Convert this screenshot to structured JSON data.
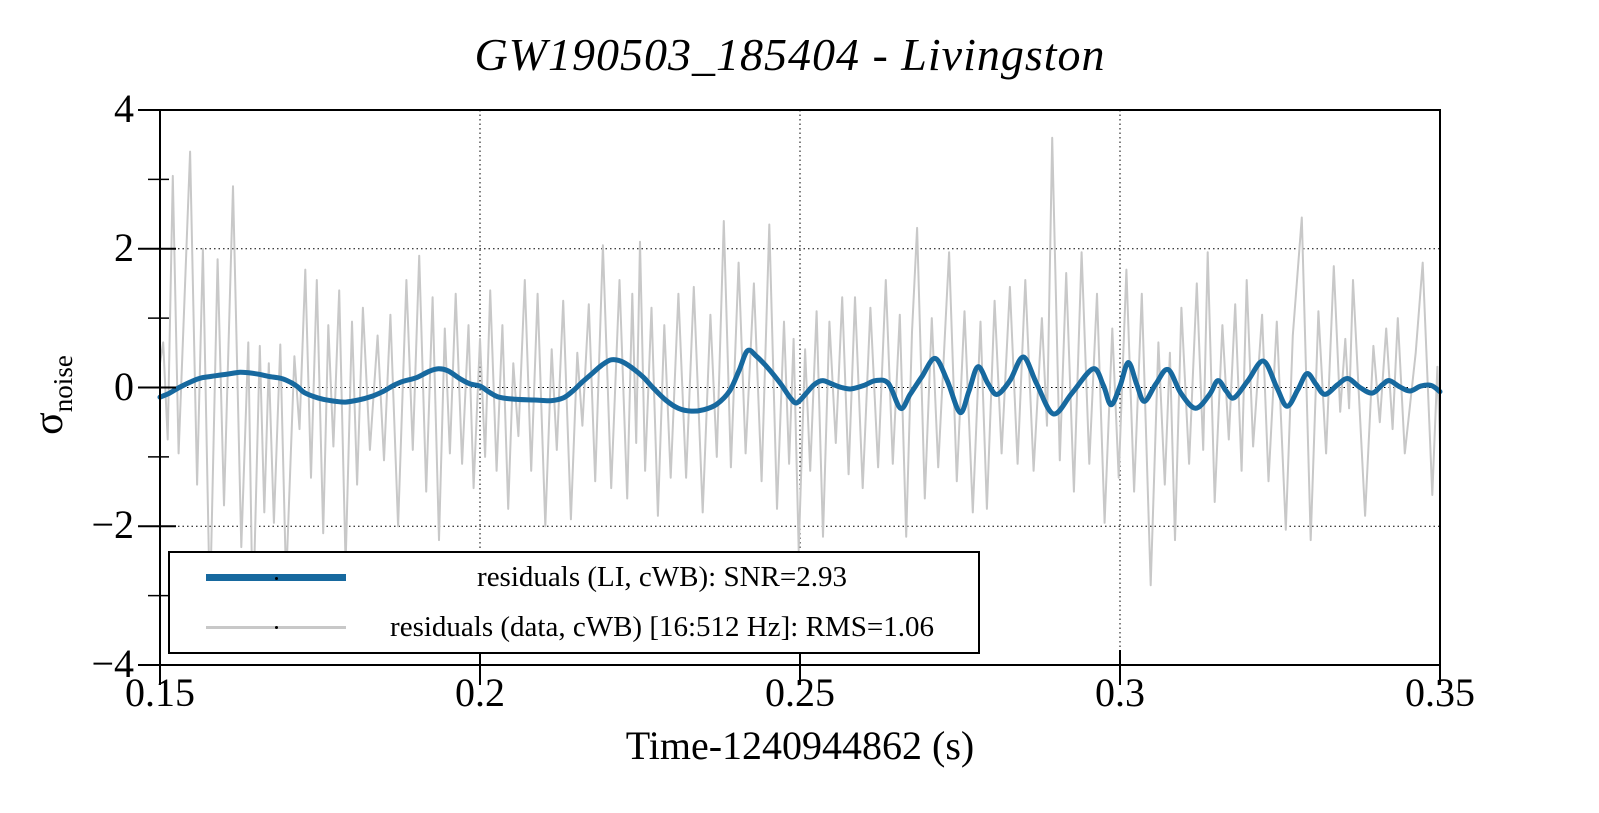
{
  "title": "GW190503_185404 - Livingston",
  "axis_titles": {
    "x": "Time-1240944862 (s)",
    "y_base": "σ",
    "y_sub": "noise"
  },
  "colors": {
    "model_blue": "#17699f",
    "data_gray": "#c8c8c8",
    "axis": "#000000",
    "grid": "#000000",
    "background": "#ffffff"
  },
  "legend": {
    "entries": [
      {
        "label": "residuals (LI, cWB): SNR=2.93",
        "color": "#17699f",
        "line_width": 7
      },
      {
        "label": "residuals (data, cWB) [16:512 Hz]: RMS=1.06",
        "color": "#c8c8c8",
        "line_width": 3
      }
    ]
  },
  "chart_data": {
    "type": "line",
    "title": "GW190503_185404 - Livingston",
    "xlabel": "Time-1240944862 (s)",
    "ylabel": "sigma_noise",
    "xlim": [
      0.15,
      0.35
    ],
    "ylim": [
      -4,
      4
    ],
    "grid": "dotted, at x=0.2,0.25,0.3 and y=-2,0,2",
    "legend_position": "lower left",
    "x_major_ticks": [
      0.15,
      0.2,
      0.25,
      0.3,
      0.35
    ],
    "x_tick_labels": [
      "0.15",
      "0.2",
      "0.25",
      "0.3",
      "0.35"
    ],
    "y_major_ticks": [
      -4,
      -2,
      0,
      2,
      4
    ],
    "y_tick_labels": [
      "−4",
      "−2",
      "0",
      "2",
      "4"
    ],
    "y_minor_ticks": [
      -3,
      -1,
      1,
      3
    ],
    "grid_x": [
      0.2,
      0.25,
      0.3
    ],
    "grid_y": [
      -2,
      0,
      2
    ],
    "series": [
      {
        "name": "residuals (LI, cWB): SNR=2.93",
        "color": "#17699f",
        "line_width": 5,
        "smooth": true,
        "t": [
          0.15,
          0.1515,
          0.153,
          0.155,
          0.1565,
          0.158,
          0.1595,
          0.161,
          0.1625,
          0.164,
          0.1655,
          0.167,
          0.169,
          0.1705,
          0.1715,
          0.1725,
          0.174,
          0.1755,
          0.1775,
          0.179,
          0.181,
          0.183,
          0.185,
          0.1865,
          0.188,
          0.19,
          0.192,
          0.1935,
          0.195,
          0.197,
          0.1985,
          0.2,
          0.2015,
          0.203,
          0.2055,
          0.2085,
          0.211,
          0.213,
          0.2145,
          0.216,
          0.2175,
          0.219,
          0.2205,
          0.222,
          0.2235,
          0.2255,
          0.227,
          0.229,
          0.231,
          0.233,
          0.235,
          0.237,
          0.239,
          0.2405,
          0.2418,
          0.2432,
          0.245,
          0.247,
          0.2485,
          0.2495,
          0.251,
          0.2522,
          0.2535,
          0.255,
          0.2565,
          0.258,
          0.26,
          0.2618,
          0.2638,
          0.2657,
          0.2672,
          0.269,
          0.2711,
          0.273,
          0.275,
          0.2764,
          0.2778,
          0.2794,
          0.2808,
          0.2828,
          0.2849,
          0.287,
          0.2896,
          0.2925,
          0.2958,
          0.2974,
          0.2986,
          0.3,
          0.3013,
          0.3026,
          0.3038,
          0.3056,
          0.3075,
          0.3095,
          0.3118,
          0.314,
          0.3153,
          0.3166,
          0.3178,
          0.32,
          0.3224,
          0.3245,
          0.3261,
          0.3278,
          0.3292,
          0.3306,
          0.332,
          0.334,
          0.3356,
          0.3375,
          0.3394,
          0.341,
          0.3421,
          0.3437,
          0.3453,
          0.347,
          0.3486,
          0.35
        ],
        "v": [
          -0.14,
          -0.08,
          0.0,
          0.09,
          0.14,
          0.16,
          0.18,
          0.2,
          0.22,
          0.21,
          0.19,
          0.16,
          0.13,
          0.07,
          0.01,
          -0.07,
          -0.13,
          -0.17,
          -0.2,
          -0.21,
          -0.18,
          -0.13,
          -0.05,
          0.03,
          0.09,
          0.14,
          0.23,
          0.27,
          0.24,
          0.12,
          0.05,
          0.02,
          -0.07,
          -0.14,
          -0.17,
          -0.18,
          -0.19,
          -0.15,
          -0.05,
          0.08,
          0.2,
          0.32,
          0.4,
          0.38,
          0.3,
          0.15,
          0.0,
          -0.18,
          -0.3,
          -0.34,
          -0.32,
          -0.24,
          -0.05,
          0.25,
          0.53,
          0.45,
          0.28,
          0.05,
          -0.15,
          -0.22,
          -0.08,
          0.04,
          0.1,
          0.05,
          0.0,
          -0.02,
          0.03,
          0.1,
          0.06,
          -0.3,
          -0.1,
          0.15,
          0.42,
          0.1,
          -0.36,
          -0.05,
          0.3,
          0.05,
          -0.1,
          0.1,
          0.44,
          0.05,
          -0.38,
          -0.08,
          0.27,
          0.03,
          -0.25,
          0.02,
          0.36,
          0.05,
          -0.2,
          0.05,
          0.26,
          -0.08,
          -0.3,
          -0.1,
          0.1,
          -0.05,
          -0.15,
          0.1,
          0.38,
          0.0,
          -0.27,
          -0.03,
          0.2,
          0.05,
          -0.1,
          0.04,
          0.13,
          0.0,
          -0.08,
          0.04,
          0.1,
          0.01,
          -0.05,
          0.02,
          0.03,
          -0.06
        ]
      },
      {
        "name": "residuals (data, cWB) [16:512 Hz]: RMS=1.06",
        "color": "#c8c8c8",
        "line_width": 2,
        "smooth": false,
        "t": [
          0.15,
          0.1505,
          0.1512,
          0.152,
          0.1529,
          0.1538,
          0.1547,
          0.1558,
          0.1567,
          0.1578,
          0.159,
          0.16,
          0.1614,
          0.1627,
          0.1638,
          0.1645,
          0.1656,
          0.1663,
          0.167,
          0.1678,
          0.1688,
          0.1697,
          0.171,
          0.1718,
          0.1727,
          0.1736,
          0.1745,
          0.1755,
          0.1763,
          0.1771,
          0.178,
          0.179,
          0.18,
          0.1808,
          0.1817,
          0.1828,
          0.184,
          0.185,
          0.186,
          0.1872,
          0.1885,
          0.1895,
          0.1905,
          0.1916,
          0.1926,
          0.1936,
          0.1945,
          0.1953,
          0.1962,
          0.1972,
          0.1982,
          0.199,
          0.2,
          0.2008,
          0.2016,
          0.2026,
          0.2035,
          0.2044,
          0.2052,
          0.206,
          0.207,
          0.208,
          0.209,
          0.2102,
          0.2112,
          0.212,
          0.213,
          0.2142,
          0.2152,
          0.216,
          0.217,
          0.218,
          0.2192,
          0.2205,
          0.2218,
          0.223,
          0.2238,
          0.2244,
          0.225,
          0.2258,
          0.2268,
          0.2278,
          0.2288,
          0.2298,
          0.231,
          0.2322,
          0.2334,
          0.2348,
          0.236,
          0.237,
          0.2381,
          0.2392,
          0.2404,
          0.2415,
          0.2428,
          0.244,
          0.2452,
          0.2464,
          0.2475,
          0.2483,
          0.249,
          0.2498,
          0.2508,
          0.2516,
          0.2526,
          0.2536,
          0.2546,
          0.2556,
          0.2566,
          0.2576,
          0.2586,
          0.2598,
          0.261,
          0.2622,
          0.2634,
          0.2645,
          0.2656,
          0.2666,
          0.2675,
          0.2683,
          0.2695,
          0.2706,
          0.2716,
          0.2733,
          0.2745,
          0.2757,
          0.277,
          0.2782,
          0.2792,
          0.2804,
          0.2815,
          0.2828,
          0.284,
          0.2852,
          0.2865,
          0.2878,
          0.2886,
          0.2894,
          0.2906,
          0.2916,
          0.2928,
          0.294,
          0.2952,
          0.2964,
          0.2976,
          0.2988,
          0.2998,
          0.301,
          0.3022,
          0.3034,
          0.3048,
          0.306,
          0.307,
          0.3078,
          0.3086,
          0.3096,
          0.3108,
          0.312,
          0.313,
          0.3137,
          0.3148,
          0.316,
          0.317,
          0.318,
          0.319,
          0.3198,
          0.3208,
          0.3222,
          0.3232,
          0.3245,
          0.3259,
          0.327,
          0.3284,
          0.3298,
          0.331,
          0.3322,
          0.3334,
          0.3344,
          0.3352,
          0.3358,
          0.3364,
          0.3383,
          0.3396,
          0.3406,
          0.3416,
          0.3426,
          0.3434,
          0.3445,
          0.3462,
          0.3473,
          0.3488,
          0.3496,
          0.35
        ],
        "v": [
          0.35,
          0.65,
          -0.75,
          3.05,
          -0.95,
          1.2,
          3.4,
          -1.4,
          2.0,
          -3.2,
          1.85,
          -1.7,
          2.9,
          -2.3,
          0.65,
          -3.4,
          0.6,
          -1.8,
          0.35,
          -1.95,
          0.62,
          -2.8,
          0.45,
          -0.6,
          1.7,
          -1.3,
          1.55,
          -2.1,
          0.9,
          -0.85,
          1.4,
          -2.55,
          0.95,
          -1.4,
          1.15,
          -0.9,
          0.75,
          -1.05,
          1.05,
          -2.0,
          1.55,
          -0.9,
          1.9,
          -1.5,
          1.3,
          -2.2,
          0.85,
          -0.95,
          1.35,
          -1.1,
          0.9,
          -1.45,
          0.7,
          -1.0,
          1.4,
          -1.2,
          0.9,
          -1.75,
          0.35,
          -0.7,
          1.55,
          -1.2,
          1.35,
          -2.0,
          0.55,
          -0.9,
          1.25,
          -1.9,
          0.5,
          -0.55,
          1.2,
          -1.35,
          2.05,
          -1.45,
          1.55,
          -1.6,
          1.35,
          -0.8,
          2.1,
          -1.2,
          1.15,
          -1.85,
          0.9,
          -1.3,
          1.35,
          -1.3,
          1.45,
          -1.8,
          1.05,
          -1.0,
          2.4,
          -1.15,
          1.8,
          -0.95,
          1.5,
          -1.35,
          2.35,
          -1.75,
          0.95,
          -1.1,
          0.7,
          -2.35,
          0.55,
          -1.2,
          1.1,
          -2.15,
          0.95,
          -0.8,
          1.3,
          -1.25,
          1.3,
          -1.45,
          1.15,
          -1.15,
          1.55,
          -1.1,
          1.05,
          -2.15,
          0.8,
          2.3,
          -1.6,
          1.0,
          -1.15,
          1.95,
          -1.35,
          1.1,
          -1.8,
          0.95,
          -1.75,
          1.25,
          -0.95,
          1.45,
          -1.1,
          1.55,
          -1.2,
          1.0,
          -0.55,
          3.6,
          -1.05,
          1.65,
          -1.5,
          1.95,
          -1.1,
          1.35,
          -1.95,
          0.85,
          -1.3,
          1.7,
          -1.5,
          1.35,
          -2.85,
          0.65,
          -1.4,
          0.5,
          -2.2,
          1.15,
          -1.1,
          1.5,
          -0.9,
          1.95,
          -1.65,
          0.9,
          -0.75,
          1.2,
          -1.2,
          1.55,
          -0.85,
          1.05,
          -1.35,
          0.95,
          -2.05,
          0.75,
          2.45,
          -2.2,
          1.1,
          -0.95,
          1.75,
          -0.35,
          0.7,
          -0.3,
          1.55,
          -1.85,
          0.6,
          -0.5,
          0.85,
          -0.6,
          1.0,
          -0.95,
          0.5,
          1.8,
          -1.55,
          0.3,
          -0.85
        ]
      }
    ]
  }
}
